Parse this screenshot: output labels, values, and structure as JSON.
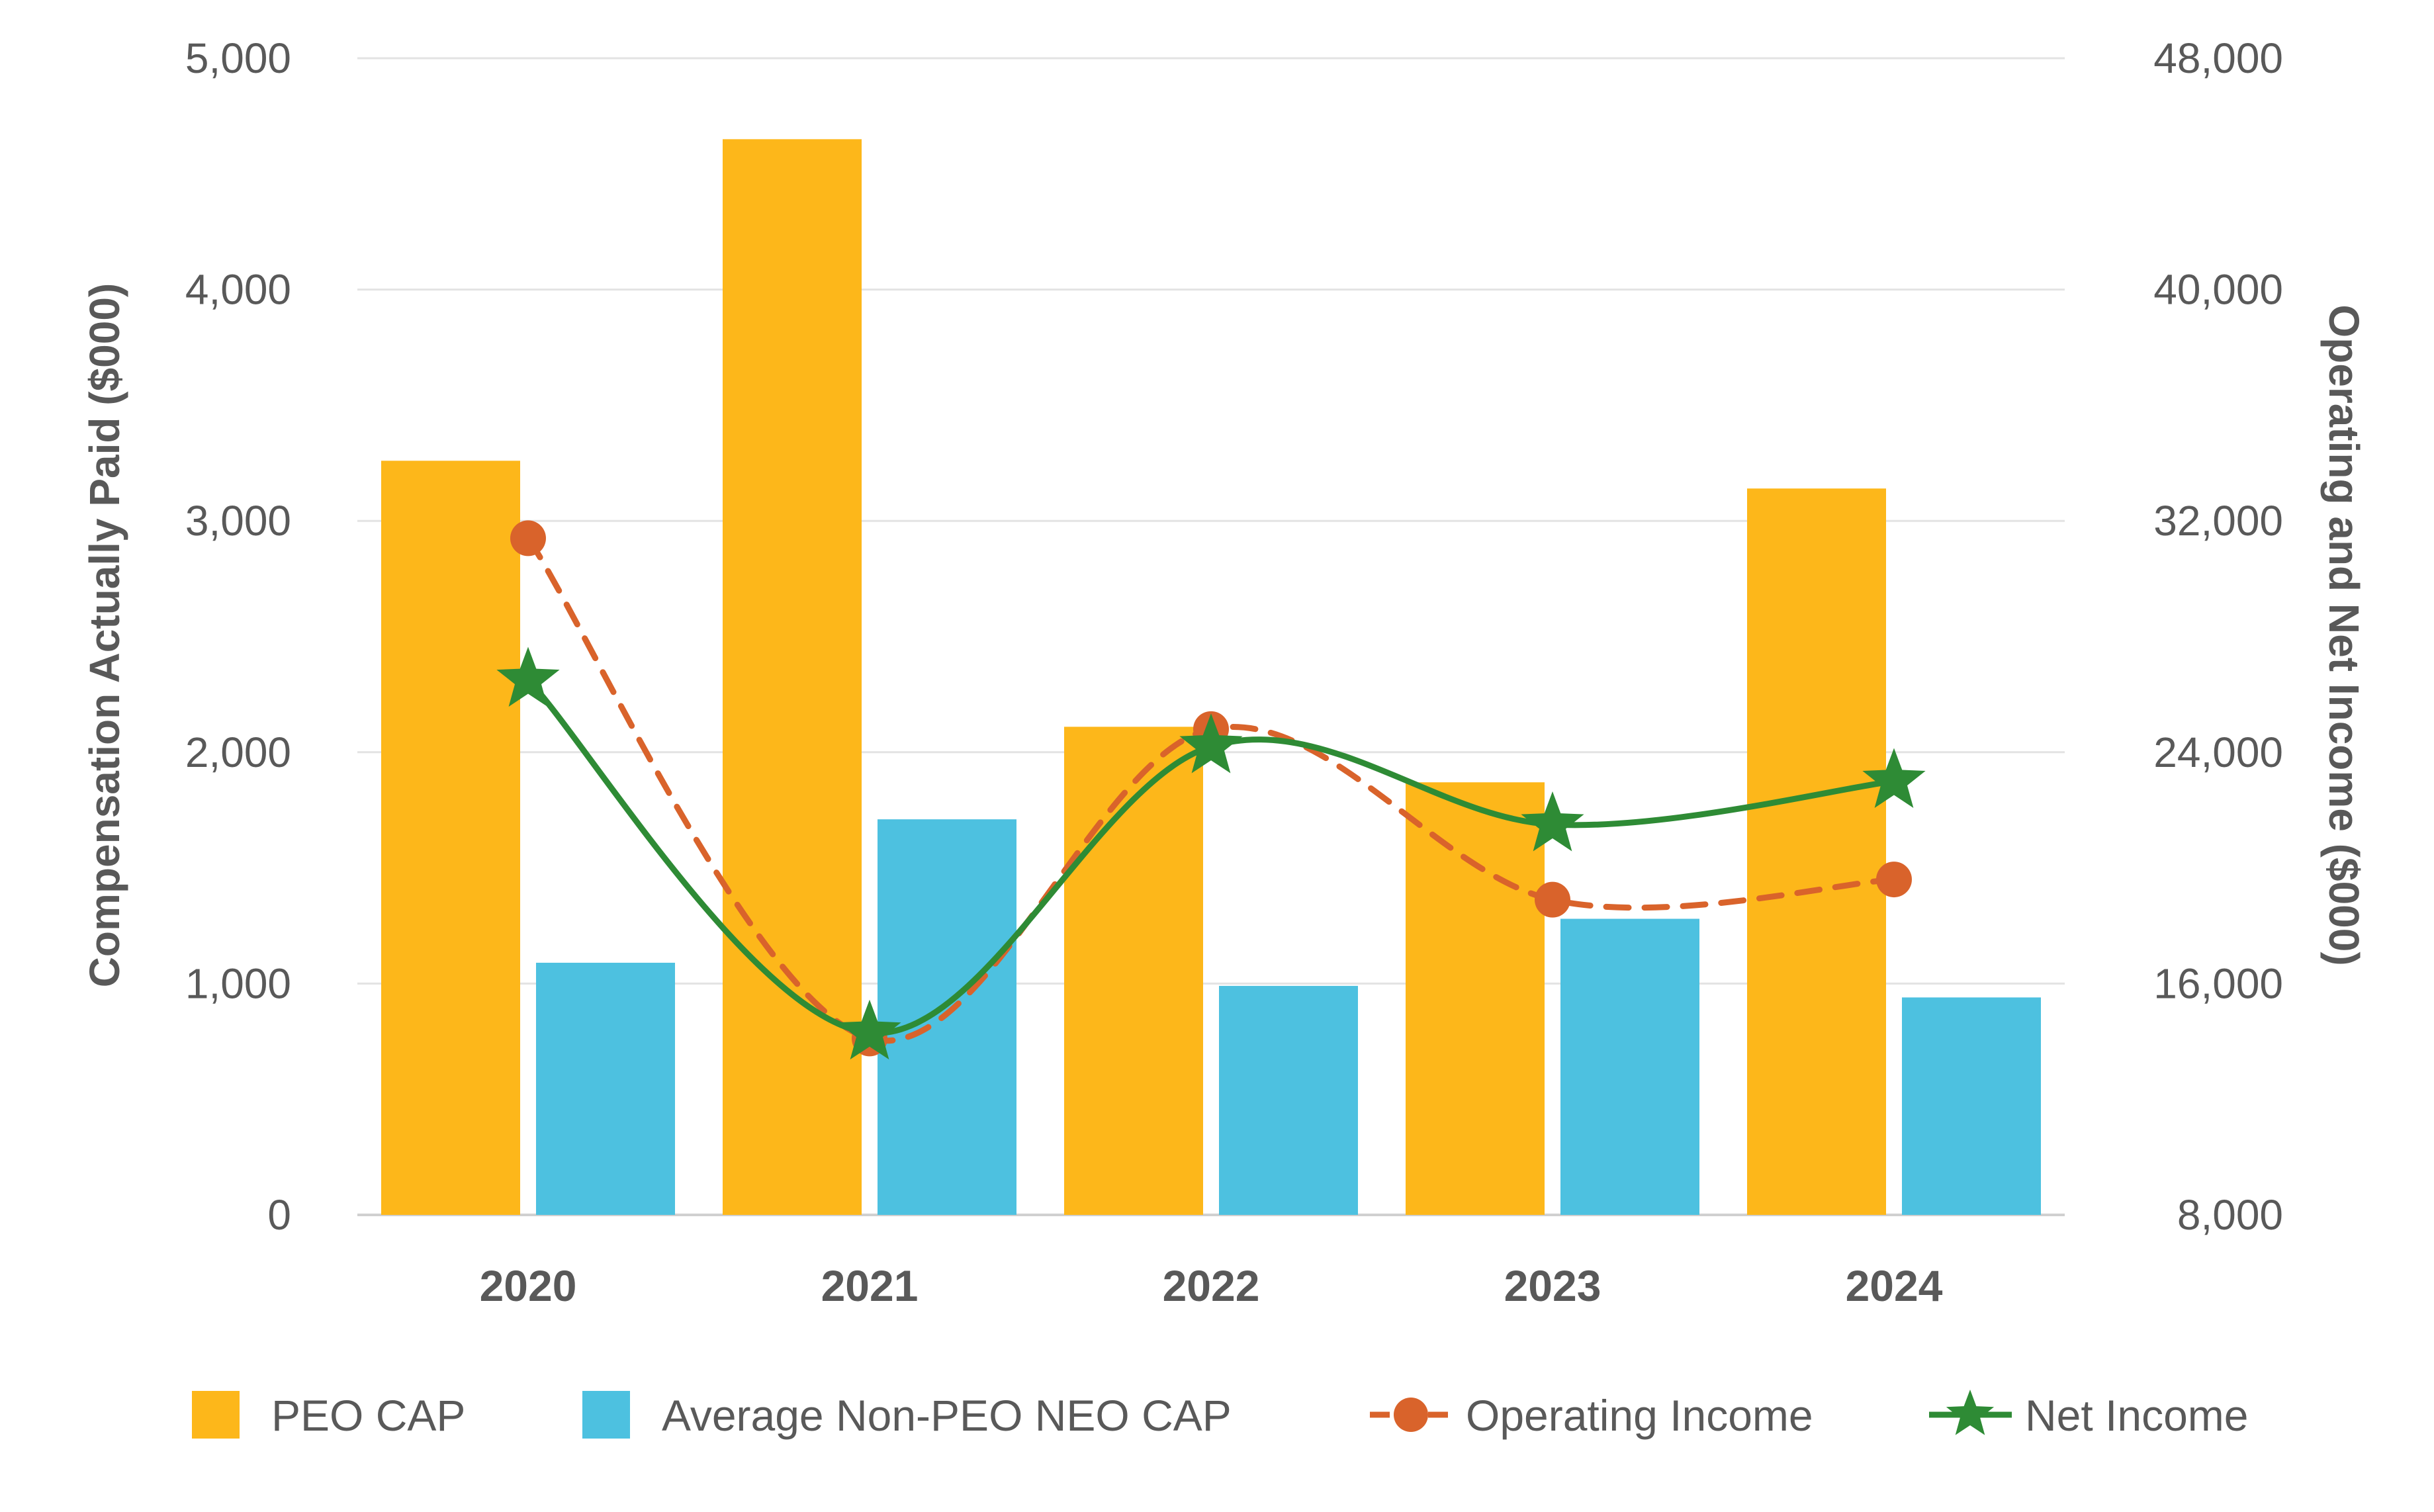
{
  "chart_data": {
    "type": "bar",
    "categories": [
      "2020",
      "2021",
      "2022",
      "2023",
      "2024"
    ],
    "series": [
      {
        "name": "PEO CAP",
        "kind": "bar",
        "axis": "left",
        "color": "#FDB71A",
        "values": [
          3260,
          4650,
          2110,
          1870,
          3140
        ]
      },
      {
        "name": "Average Non-PEO NEO CAP",
        "kind": "bar",
        "axis": "left",
        "color": "#4DC1E0",
        "values": [
          1090,
          1710,
          990,
          1280,
          940
        ]
      }
    ],
    "line_series": [
      {
        "name": "Operating Income",
        "kind": "line",
        "axis": "right",
        "color": "#D9632B",
        "line_style": "dashed",
        "marker": "circle",
        "values": [
          31400,
          14100,
          24800,
          18900,
          19600
        ]
      },
      {
        "name": "Net Income",
        "kind": "line",
        "axis": "right",
        "color": "#2E8B35",
        "line_style": "solid",
        "marker": "star",
        "values": [
          26500,
          14300,
          24200,
          21500,
          23000
        ]
      }
    ],
    "left_axis": {
      "label": "Compensation Actually Paid ($000)",
      "ylim": [
        0,
        5000
      ],
      "ticks": [
        "0",
        "1,000",
        "2,000",
        "3,000",
        "4,000",
        "5,000"
      ],
      "tick_values": [
        0,
        1000,
        2000,
        3000,
        4000,
        5000
      ]
    },
    "right_axis": {
      "label": "Operating and Net Income ($000)",
      "ylim": [
        8000,
        48000
      ],
      "ticks": [
        "8,000",
        "16,000",
        "24,000",
        "32,000",
        "40,000",
        "48,000"
      ],
      "tick_values": [
        8000,
        16000,
        24000,
        32000,
        40000,
        48000
      ]
    },
    "grid": true,
    "legend": "bottom"
  }
}
